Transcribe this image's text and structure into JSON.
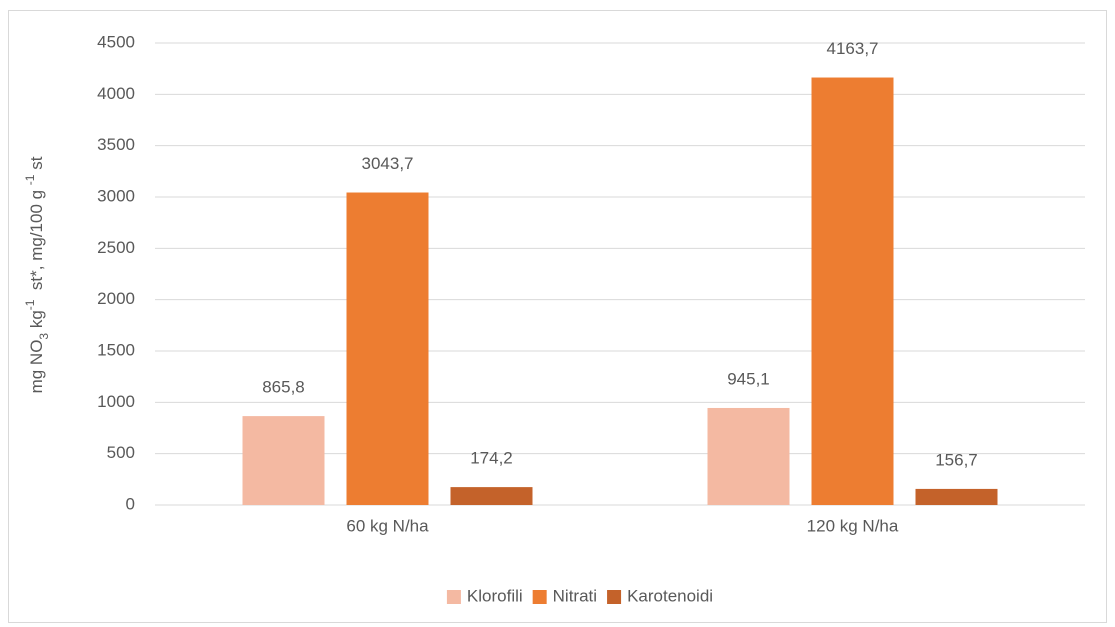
{
  "chart_data": {
    "type": "bar",
    "y_label": [
      {
        "text": "mg NO"
      },
      {
        "text": "3",
        "shift": "sub"
      },
      {
        "text": " kg"
      },
      {
        "text": "-1",
        "shift": "super"
      },
      {
        "text": "  st*, mg/100 g "
      },
      {
        "text": "-1",
        "shift": "super"
      },
      {
        "text": " st"
      }
    ],
    "categories": [
      "60 kg N/ha",
      "120 kg N/ha"
    ],
    "series": [
      {
        "name": "Klorofili",
        "color": "#f4b9a2",
        "values": [
          865.8,
          945.1
        ],
        "value_labels": [
          "865,8",
          "945,1"
        ]
      },
      {
        "name": "Nitrati",
        "color": "#ed7d31",
        "values": [
          3043.7,
          4163.7
        ],
        "value_labels": [
          "3043,7",
          "4163,7"
        ]
      },
      {
        "name": "Karotenoidi",
        "color": "#c4622a",
        "values": [
          174.2,
          156.7
        ],
        "value_labels": [
          "174,2",
          "156,7"
        ]
      }
    ],
    "ylim": [
      0,
      4500
    ],
    "yticks": [
      0,
      500,
      1000,
      1500,
      2000,
      2500,
      3000,
      3500,
      4000,
      4500
    ],
    "grid": true,
    "legend": "bottom"
  }
}
